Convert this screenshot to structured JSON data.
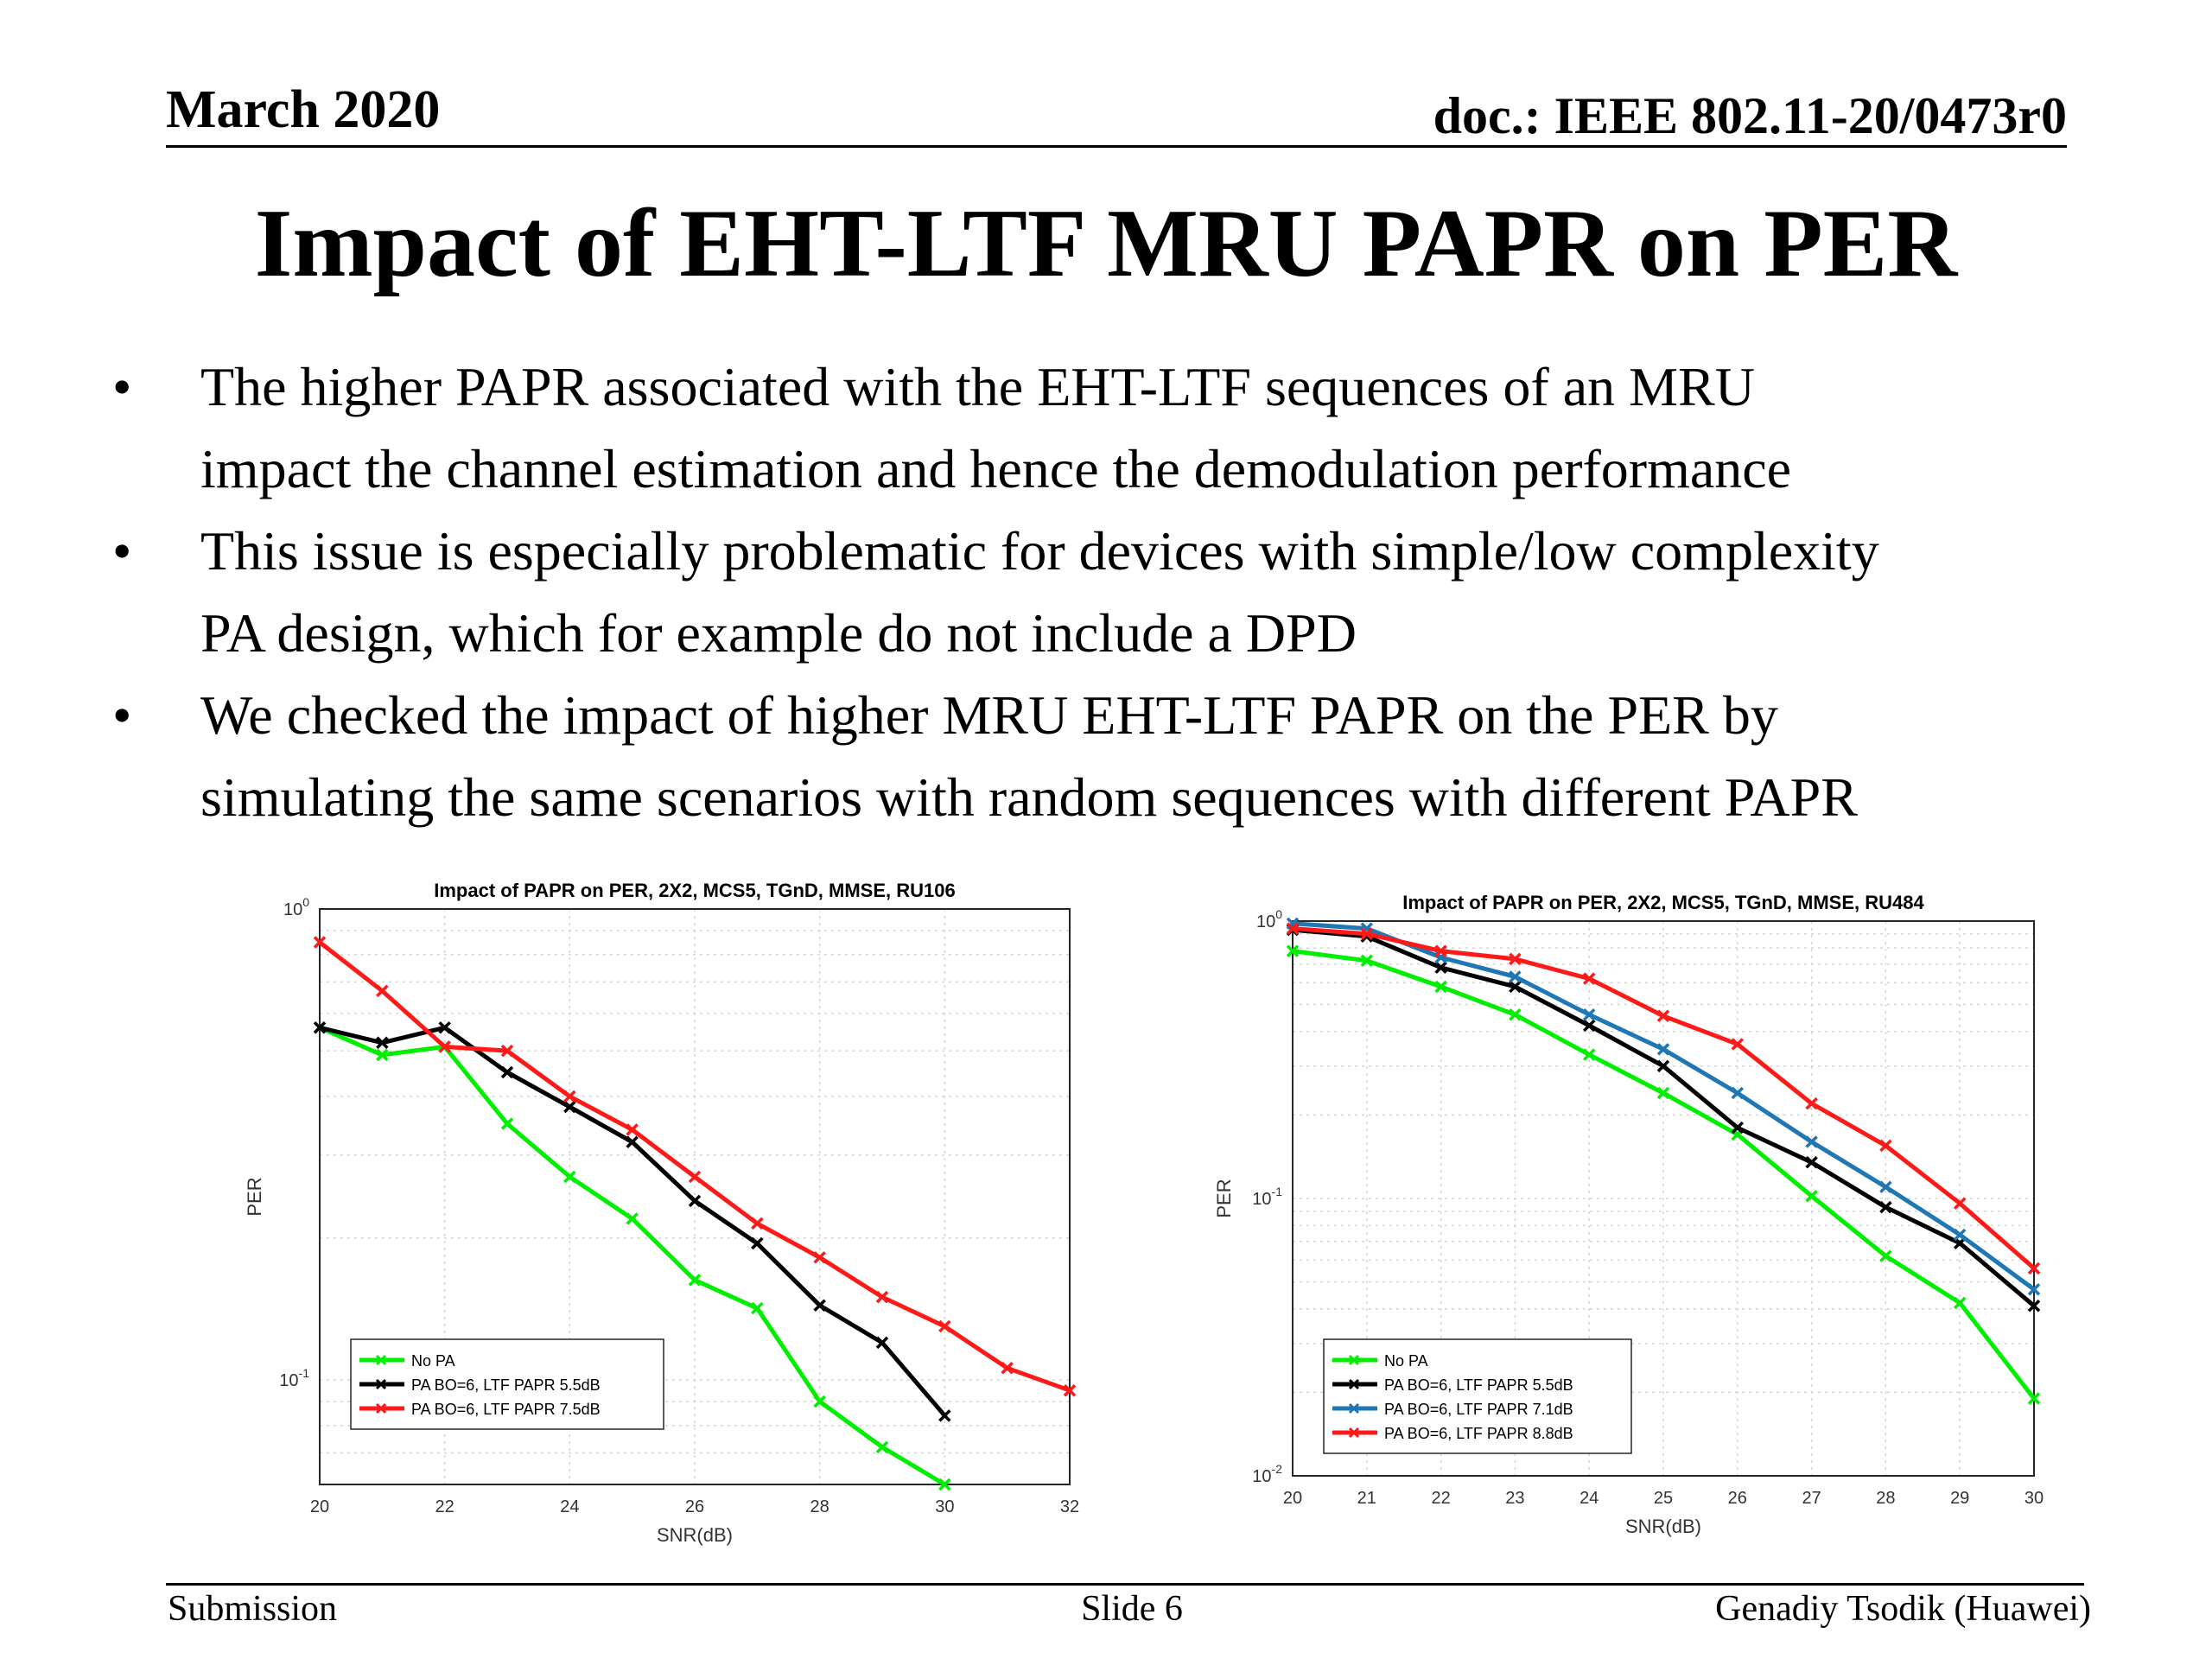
{
  "header": {
    "date": "March 2020",
    "doc": "doc.: IEEE 802.11-20/0473r0"
  },
  "title": "Impact of EHT-LTF MRU PAPR on PER",
  "bullets": [
    {
      "line1": "The higher PAPR associated with the EHT-LTF sequences of an MRU",
      "line2": "impact the channel estimation and hence the demodulation performance"
    },
    {
      "line1": "This issue is especially problematic for devices with simple/low complexity",
      "line2": "PA design, which for example do not include a DPD"
    },
    {
      "line1": "We checked the impact of higher MRU EHT-LTF PAPR on the PER by",
      "line2": "simulating the same scenarios with random sequences with different PAPR"
    }
  ],
  "bullet_glyph": "•",
  "footer": {
    "left": "Submission",
    "center": "Slide 6",
    "right": "Genadiy Tsodik (Huawei)"
  },
  "chart_data": [
    {
      "type": "line",
      "title": "Impact of PAPR on PER, 2X2, MCS5, TGnD, MMSE, RU106",
      "xlabel": "SNR(dB)",
      "ylabel": "PER",
      "yscale": "log",
      "xlim": [
        20,
        32
      ],
      "ylim": [
        0.06,
        1
      ],
      "xticks": [
        "20",
        "22",
        "24",
        "26",
        "28",
        "30",
        "32"
      ],
      "yticks": [
        {
          "value": 1,
          "base": "10",
          "exp": "0"
        },
        {
          "value": 0.1,
          "base": "10",
          "exp": "-1"
        }
      ],
      "grid": true,
      "legend_position": "bottom-left",
      "series": [
        {
          "name": "No PA",
          "color": "#00ee00",
          "x": [
            20,
            21,
            22,
            23,
            24,
            25,
            26,
            27,
            28,
            29,
            30
          ],
          "y": [
            0.56,
            0.49,
            0.51,
            0.35,
            0.27,
            0.22,
            0.163,
            0.142,
            0.09,
            0.072,
            0.06
          ]
        },
        {
          "name": "PA BO=6, LTF PAPR 5.5dB",
          "color": "#000000",
          "x": [
            20,
            21,
            22,
            23,
            24,
            25,
            26,
            27,
            28,
            29,
            30
          ],
          "y": [
            0.56,
            0.52,
            0.56,
            0.45,
            0.38,
            0.32,
            0.24,
            0.195,
            0.144,
            0.12,
            0.084
          ]
        },
        {
          "name": "PA BO=6, LTF PAPR 7.5dB",
          "color": "#ff1a1a",
          "x": [
            20,
            21,
            22,
            23,
            24,
            25,
            26,
            27,
            28,
            29,
            30,
            31,
            32
          ],
          "y": [
            0.85,
            0.67,
            0.51,
            0.5,
            0.4,
            0.34,
            0.27,
            0.215,
            0.182,
            0.15,
            0.13,
            0.106,
            0.095
          ]
        }
      ]
    },
    {
      "type": "line",
      "title": "Impact of PAPR on PER, 2X2, MCS5, TGnD, MMSE, RU484",
      "xlabel": "SNR(dB)",
      "ylabel": "PER",
      "yscale": "log",
      "xlim": [
        20,
        30
      ],
      "ylim": [
        0.01,
        1
      ],
      "xticks": [
        "20",
        "21",
        "22",
        "23",
        "24",
        "25",
        "26",
        "27",
        "28",
        "29",
        "30"
      ],
      "yticks": [
        {
          "value": 1,
          "base": "10",
          "exp": "0"
        },
        {
          "value": 0.1,
          "base": "10",
          "exp": "-1"
        },
        {
          "value": 0.01,
          "base": "10",
          "exp": "-2"
        }
      ],
      "grid": true,
      "legend_position": "bottom-left",
      "series": [
        {
          "name": "No PA",
          "color": "#00ee00",
          "x": [
            20,
            21,
            22,
            23,
            24,
            25,
            26,
            27,
            28,
            29,
            30
          ],
          "y": [
            0.78,
            0.72,
            0.58,
            0.46,
            0.33,
            0.24,
            0.17,
            0.102,
            0.062,
            0.042,
            0.019
          ]
        },
        {
          "name": "PA BO=6, LTF PAPR 5.5dB",
          "color": "#000000",
          "x": [
            20,
            21,
            22,
            23,
            24,
            25,
            26,
            27,
            28,
            29,
            30
          ],
          "y": [
            0.93,
            0.88,
            0.68,
            0.58,
            0.42,
            0.3,
            0.18,
            0.135,
            0.093,
            0.069,
            0.041
          ]
        },
        {
          "name": "PA BO=6, LTF PAPR 7.1dB",
          "color": "#1f77b4",
          "x": [
            20,
            21,
            22,
            23,
            24,
            25,
            26,
            27,
            28,
            29,
            30
          ],
          "y": [
            0.98,
            0.94,
            0.74,
            0.63,
            0.46,
            0.345,
            0.24,
            0.16,
            0.11,
            0.074,
            0.047
          ]
        },
        {
          "name": "PA BO=6, LTF PAPR 8.8dB",
          "color": "#ff1a1a",
          "x": [
            20,
            21,
            22,
            23,
            24,
            25,
            26,
            27,
            28,
            29,
            30
          ],
          "y": [
            0.94,
            0.9,
            0.78,
            0.73,
            0.62,
            0.455,
            0.36,
            0.22,
            0.155,
            0.096,
            0.056
          ]
        }
      ]
    }
  ]
}
